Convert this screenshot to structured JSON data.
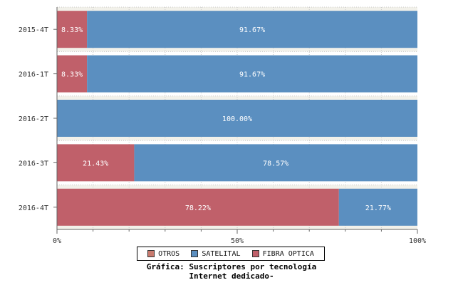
{
  "chart_data": {
    "type": "bar",
    "orientation": "horizontal",
    "stacked": true,
    "normalized": true,
    "categories": [
      "2015-4T",
      "2016-1T",
      "2016-2T",
      "2016-3T",
      "2016-4T"
    ],
    "series": [
      {
        "name": "OTROS",
        "color": "#c87a6e",
        "values": [
          0,
          0,
          0,
          0,
          0
        ],
        "labels": [
          "",
          "",
          "",
          "",
          ""
        ]
      },
      {
        "name": "FIBRA OPTICA",
        "color": "#c0606a",
        "values": [
          8.33,
          8.33,
          0,
          21.43,
          78.22
        ],
        "labels": [
          "8.33%",
          "8.33%",
          "",
          "21.43%",
          "78.22%"
        ]
      },
      {
        "name": "SATELITAL",
        "color": "#5b8fc0",
        "values": [
          91.67,
          91.67,
          100.0,
          78.57,
          21.77
        ],
        "labels": [
          "91.67%",
          "91.67%",
          "100.00%",
          "78.57%",
          "21.77%"
        ]
      }
    ],
    "xlim": [
      0,
      100
    ],
    "xticks": [
      "0%",
      "50%",
      "100%"
    ],
    "legend_order": [
      "OTROS",
      "SATELITAL",
      "FIBRA OPTICA"
    ],
    "legend_position": "bottom",
    "grid": true
  },
  "caption": {
    "line1": "Gráfica: Suscriptores por tecnología",
    "line2": "Internet dedicado-"
  },
  "colors": {
    "band_light": "#f2f1ea",
    "grid": "#c8c8c8"
  }
}
